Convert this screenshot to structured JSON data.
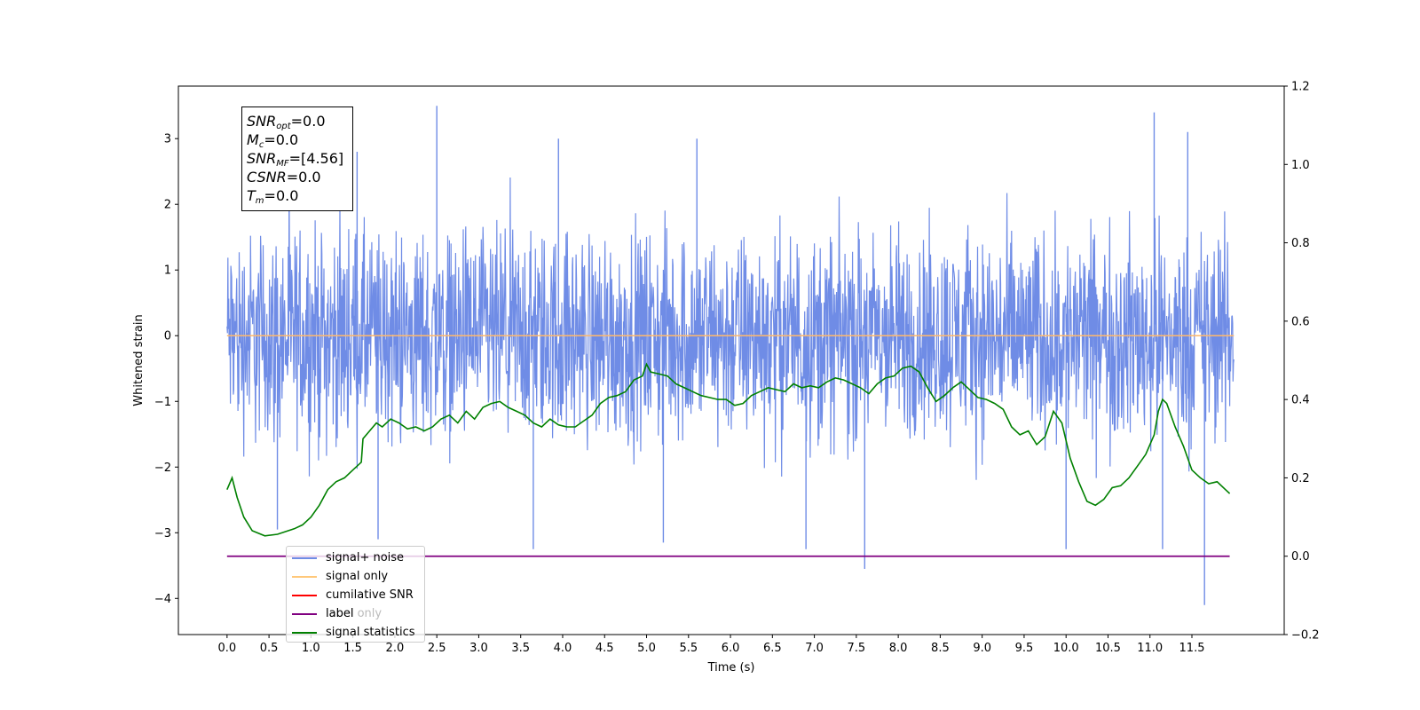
{
  "chart_data": {
    "type": "line",
    "xlabel": "Time (s)",
    "ylabel": "Whitened strain",
    "xlim": [
      -0.58,
      12.6
    ],
    "ylim": [
      -4.55,
      3.8
    ],
    "y2lim": [
      -0.2,
      1.2
    ],
    "x_ticks": [
      "0.0",
      "0.5",
      "1.0",
      "1.5",
      "2.0",
      "2.5",
      "3.0",
      "3.5",
      "4.0",
      "4.5",
      "5.0",
      "5.5",
      "6.0",
      "6.5",
      "7.0",
      "7.5",
      "8.0",
      "8.5",
      "9.0",
      "9.5",
      "10.0",
      "10.5",
      "11.0",
      "11.5"
    ],
    "y_ticks": [
      "3",
      "2",
      "1",
      "0",
      "−1",
      "−2",
      "−3",
      "−4"
    ],
    "y2_ticks": [
      "1.2",
      "1.0",
      "0.8",
      "0.6",
      "0.4",
      "0.2",
      "0.0",
      "−0.2"
    ],
    "annotation": {
      "snr_opt": "=0.0",
      "mc": "=0.0",
      "snr_mf": "=[4.56]",
      "csnr": "=0.0",
      "tm": "=0.0"
    },
    "legend": {
      "placement": "lower-left",
      "items": [
        "signal+ noise",
        "signal only",
        "cumilative SNR",
        "label",
        "signal statistics"
      ],
      "overlapped_text": "label only"
    },
    "colors": {
      "signal_noise": "#6f8ce6",
      "signal_only": "#ffb86b",
      "cumulative_snr": "#ff0000",
      "label": "#800080",
      "signal_statistics": "#008000"
    },
    "series": [
      {
        "name": "signal+ noise",
        "axis": "left",
        "x_range": [
          0.0,
          12.0
        ],
        "envelope_upper": 2.3,
        "envelope_lower": -2.4,
        "spikes": [
          [
            2.5,
            3.5
          ],
          [
            11.05,
            3.4
          ],
          [
            1.55,
            2.8
          ],
          [
            3.95,
            3.0
          ],
          [
            5.6,
            3.0
          ],
          [
            11.45,
            3.1
          ],
          [
            0.6,
            -2.95
          ],
          [
            1.8,
            -3.1
          ],
          [
            3.65,
            -3.25
          ],
          [
            5.2,
            -3.15
          ],
          [
            6.9,
            -3.25
          ],
          [
            7.6,
            -3.55
          ],
          [
            10.0,
            -3.25
          ],
          [
            11.15,
            -3.25
          ],
          [
            11.65,
            -4.1
          ]
        ]
      },
      {
        "name": "signal only",
        "axis": "left",
        "x": [
          0.0,
          12.0
        ],
        "y": [
          0.0,
          0.0
        ]
      },
      {
        "name": "label",
        "axis": "right",
        "x": [
          0.0,
          11.95
        ],
        "y": [
          0.0,
          0.0
        ]
      },
      {
        "name": "signal statistics",
        "axis": "right",
        "x": [
          0.0,
          0.06,
          0.12,
          0.2,
          0.3,
          0.45,
          0.6,
          0.8,
          0.9,
          1.0,
          1.1,
          1.2,
          1.3,
          1.4,
          1.5,
          1.6,
          1.62,
          1.7,
          1.78,
          1.85,
          1.95,
          2.05,
          2.15,
          2.25,
          2.35,
          2.45,
          2.55,
          2.65,
          2.75,
          2.85,
          2.95,
          3.05,
          3.15,
          3.25,
          3.35,
          3.45,
          3.55,
          3.65,
          3.75,
          3.85,
          3.95,
          4.05,
          4.15,
          4.25,
          4.35,
          4.45,
          4.55,
          4.65,
          4.75,
          4.85,
          4.95,
          5.0,
          5.05,
          5.15,
          5.25,
          5.35,
          5.45,
          5.55,
          5.65,
          5.75,
          5.85,
          5.95,
          6.05,
          6.15,
          6.25,
          6.35,
          6.45,
          6.55,
          6.65,
          6.75,
          6.85,
          6.95,
          7.05,
          7.15,
          7.25,
          7.35,
          7.45,
          7.55,
          7.65,
          7.75,
          7.85,
          7.95,
          8.05,
          8.15,
          8.25,
          8.35,
          8.45,
          8.55,
          8.65,
          8.75,
          8.85,
          8.95,
          9.05,
          9.15,
          9.25,
          9.35,
          9.45,
          9.55,
          9.65,
          9.75,
          9.85,
          9.95,
          10.05,
          10.15,
          10.25,
          10.35,
          10.45,
          10.55,
          10.65,
          10.75,
          10.85,
          10.95,
          11.05,
          11.1,
          11.15,
          11.2,
          11.3,
          11.4,
          11.5,
          11.6,
          11.7,
          11.8,
          11.9,
          11.95
        ],
        "y": [
          0.17,
          0.2,
          0.15,
          0.1,
          0.065,
          0.052,
          0.056,
          0.07,
          0.08,
          0.1,
          0.13,
          0.17,
          0.19,
          0.2,
          0.22,
          0.24,
          0.3,
          0.32,
          0.34,
          0.33,
          0.35,
          0.34,
          0.325,
          0.33,
          0.32,
          0.33,
          0.35,
          0.36,
          0.34,
          0.37,
          0.35,
          0.38,
          0.39,
          0.395,
          0.38,
          0.37,
          0.36,
          0.34,
          0.33,
          0.35,
          0.335,
          0.33,
          0.33,
          0.345,
          0.36,
          0.39,
          0.405,
          0.41,
          0.42,
          0.45,
          0.46,
          0.49,
          0.47,
          0.465,
          0.46,
          0.44,
          0.43,
          0.42,
          0.41,
          0.405,
          0.4,
          0.4,
          0.385,
          0.39,
          0.41,
          0.42,
          0.43,
          0.425,
          0.42,
          0.44,
          0.43,
          0.435,
          0.43,
          0.445,
          0.455,
          0.45,
          0.44,
          0.43,
          0.415,
          0.44,
          0.455,
          0.46,
          0.48,
          0.485,
          0.47,
          0.43,
          0.395,
          0.41,
          0.43,
          0.445,
          0.425,
          0.405,
          0.4,
          0.39,
          0.375,
          0.33,
          0.31,
          0.32,
          0.285,
          0.305,
          0.37,
          0.34,
          0.25,
          0.19,
          0.14,
          0.13,
          0.145,
          0.175,
          0.18,
          0.2,
          0.23,
          0.26,
          0.31,
          0.37,
          0.4,
          0.39,
          0.33,
          0.28,
          0.22,
          0.2,
          0.185,
          0.19,
          0.17,
          0.16
        ]
      }
    ]
  }
}
